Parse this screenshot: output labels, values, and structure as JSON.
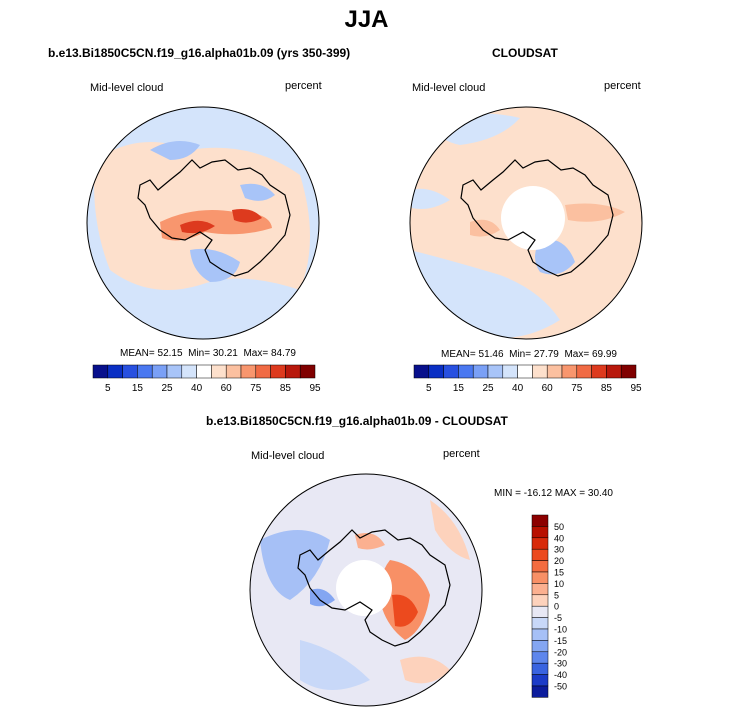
{
  "page": {
    "title": "JJA"
  },
  "panels": [
    {
      "title": "b.e13.Bi1850C5CN.f19_g16.alpha01b.09 (yrs 350-399)",
      "left_label": "Mid-level cloud",
      "right_label": "percent",
      "stats": {
        "mean_label": "MEAN=",
        "mean": "52.15",
        "min_label": "Min=",
        "min": "30.21",
        "max_label": "Max=",
        "max": "84.79"
      }
    },
    {
      "title": "CLOUDSAT",
      "left_label": "Mid-level cloud",
      "right_label": "percent",
      "stats": {
        "mean_label": "MEAN=",
        "mean": "51.46",
        "min_label": "Min=",
        "min": "27.79",
        "max_label": "Max=",
        "max": "69.99"
      }
    },
    {
      "title": "b.e13.Bi1850C5CN.f19_g16.alpha01b.09 - CLOUDSAT",
      "left_label": "Mid-level cloud",
      "right_label": "percent",
      "minmax": "MIN = -16.12 MAX =  30.40"
    }
  ],
  "colorbar_abs": {
    "labels": [
      "5",
      "15",
      "25",
      "40",
      "60",
      "75",
      "85",
      "95"
    ],
    "colors": [
      "#08108c",
      "#0a2fc4",
      "#2850e0",
      "#4a78f0",
      "#7aa0f6",
      "#a8c4f8",
      "#d4e4fb",
      "#ffffff",
      "#fde0cc",
      "#fbc0a0",
      "#f8966e",
      "#f06a44",
      "#dd3a1e",
      "#b8180c",
      "#800000"
    ]
  },
  "colorbar_diff": {
    "labels": [
      "50",
      "40",
      "30",
      "20",
      "15",
      "10",
      "5",
      "0",
      "-5",
      "-10",
      "-15",
      "-20",
      "-30",
      "-40",
      "-50"
    ],
    "colors": [
      "#8c0000",
      "#b81000",
      "#d82a0a",
      "#ec4a1e",
      "#f46c40",
      "#f89066",
      "#fbb090",
      "#fdd2bc",
      "#e8e8f4",
      "#c8d8f8",
      "#a6c0f6",
      "#84a6f2",
      "#5e86ec",
      "#3a64e0",
      "#1c3cc8",
      "#0c1c9c"
    ]
  },
  "colors": {
    "ocean_light_blue": "#d4e4fb",
    "land_peach": "#fde0cc",
    "mid_blue": "#a8c4f8",
    "orange": "#f8966e",
    "red": "#dd3a1e",
    "pole_hole": "#ffffff"
  }
}
